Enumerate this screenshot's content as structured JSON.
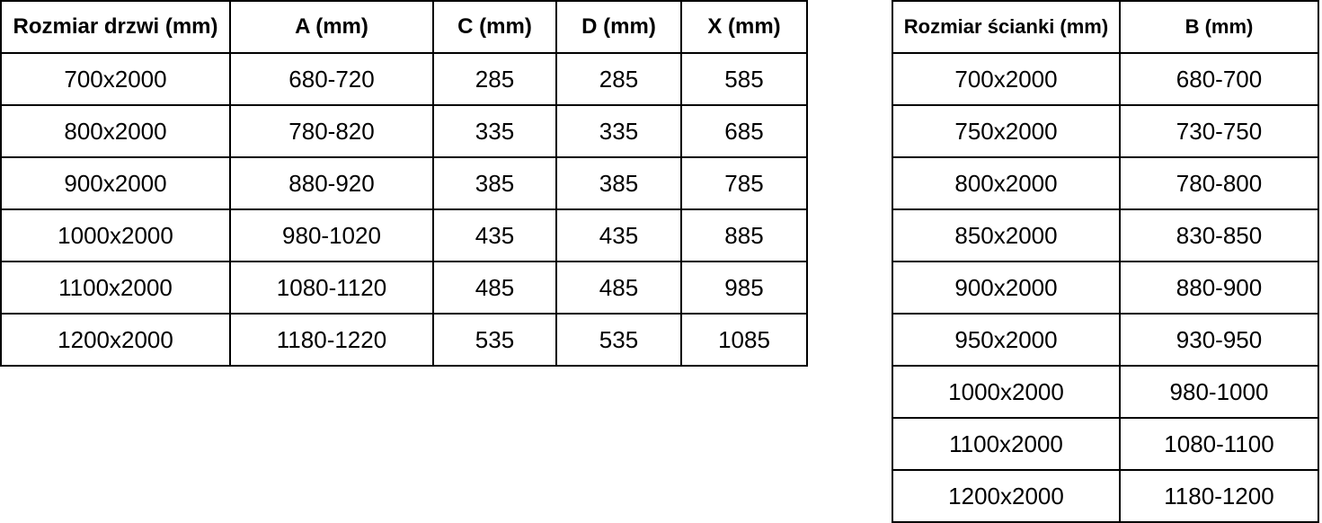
{
  "door_table": {
    "columns": [
      "Rozmiar drzwi (mm)",
      "A (mm)",
      "C (mm)",
      "D (mm)",
      "X (mm)"
    ],
    "rows": [
      [
        "700x2000",
        "680-720",
        "285",
        "285",
        "585"
      ],
      [
        "800x2000",
        "780-820",
        "335",
        "335",
        "685"
      ],
      [
        "900x2000",
        "880-920",
        "385",
        "385",
        "785"
      ],
      [
        "1000x2000",
        "980-1020",
        "435",
        "435",
        "885"
      ],
      [
        "1100x2000",
        "1080-1120",
        "485",
        "485",
        "985"
      ],
      [
        "1200x2000",
        "1180-1220",
        "535",
        "535",
        "1085"
      ]
    ]
  },
  "wall_table": {
    "columns": [
      "Rozmiar ścianki (mm)",
      "B (mm)"
    ],
    "rows": [
      [
        "700x2000",
        "680-700"
      ],
      [
        "750x2000",
        "730-750"
      ],
      [
        "800x2000",
        "780-800"
      ],
      [
        "850x2000",
        "830-850"
      ],
      [
        "900x2000",
        "880-900"
      ],
      [
        "950x2000",
        "930-950"
      ],
      [
        "1000x2000",
        "980-1000"
      ],
      [
        "1100x2000",
        "1080-1100"
      ],
      [
        "1200x2000",
        "1180-1200"
      ]
    ]
  },
  "colors": {
    "text": "#000000",
    "border": "#000000",
    "background": "#ffffff"
  }
}
